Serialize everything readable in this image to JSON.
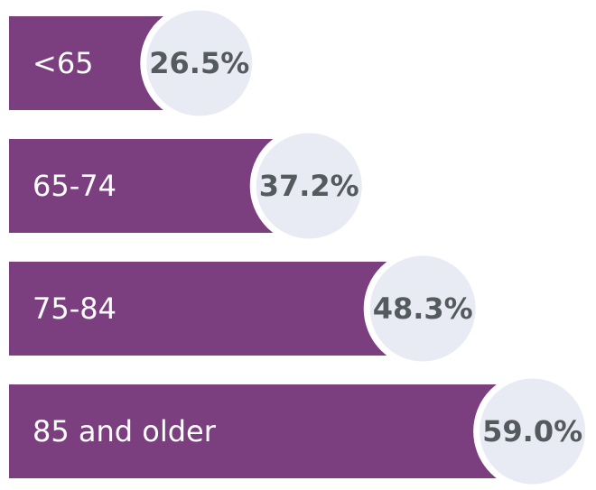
{
  "chart_data": {
    "type": "bar",
    "orientation": "horizontal",
    "categories": [
      "<65",
      "65-74",
      "75-84",
      "85 and older"
    ],
    "values": [
      26.5,
      37.2,
      48.3,
      59.0
    ],
    "value_labels": [
      "26.5%",
      "37.2%",
      "48.3%",
      "59.0%"
    ],
    "color": "#7b3f80"
  }
}
